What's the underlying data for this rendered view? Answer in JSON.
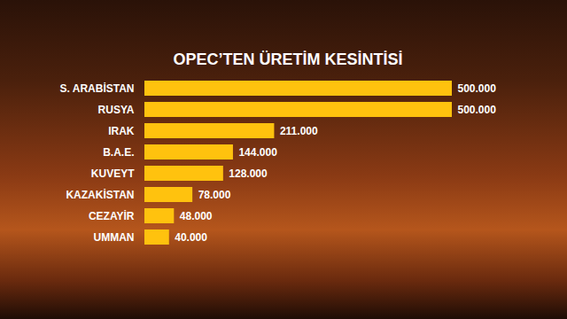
{
  "chart_data": {
    "type": "bar",
    "orientation": "horizontal",
    "title": "OPEC’TEN ÜRETİM KESİNTİSİ",
    "categories": [
      "S. ARABİSTAN",
      "RUSYA",
      "IRAK",
      "B.A.E.",
      "KUVEYT",
      "KAZAKİSTAN",
      "CEZAYİR",
      "UMMAN"
    ],
    "values": [
      500000,
      500000,
      211000,
      144000,
      128000,
      78000,
      48000,
      40000
    ],
    "value_labels": [
      "500.000",
      "500.000",
      "211.000",
      "144.000",
      "128.000",
      "78.000",
      "48.000",
      "40.000"
    ],
    "color": "#ffc20e",
    "xlim": [
      0,
      500000
    ],
    "data_labels": true,
    "tick_labels": "y",
    "grid": false
  }
}
